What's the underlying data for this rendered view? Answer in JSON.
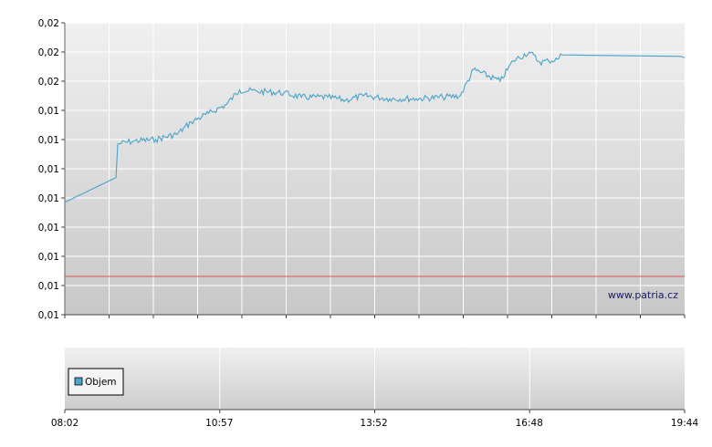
{
  "chart_data": {
    "type": "line",
    "title": "",
    "xlabel": "",
    "ylabel": "",
    "y_tick_labels": [
      "0,02",
      "0,02",
      "0,02",
      "0,01",
      "0,01",
      "0,01",
      "0,01",
      "0,01",
      "0,01",
      "0,01",
      "0,01"
    ],
    "x_tick_labels": [
      "08:02",
      "10:57",
      "13:52",
      "16:48",
      "19:44"
    ],
    "x_range": [
      "08:02",
      "19:44"
    ],
    "grid": true,
    "watermark": "www.patria.cz",
    "reference_line": {
      "color": "#d9534f"
    },
    "series": [
      {
        "color": "#4ba3c8",
        "x": [
          "08:02",
          "09:00",
          "09:02",
          "09:20",
          "09:45",
          "10:10",
          "10:25",
          "10:45",
          "11:05",
          "11:20",
          "11:40",
          "12:10",
          "12:30",
          "13:00",
          "13:20",
          "13:40",
          "14:10",
          "14:40",
          "15:10",
          "15:30",
          "15:45",
          "16:15",
          "16:30",
          "16:48",
          "17:00",
          "17:10",
          "17:20",
          "17:25",
          "19:40",
          "19:44"
        ],
        "y_frac": [
          0.385,
          0.47,
          0.585,
          0.595,
          0.6,
          0.62,
          0.66,
          0.69,
          0.72,
          0.77,
          0.765,
          0.76,
          0.745,
          0.745,
          0.735,
          0.75,
          0.74,
          0.74,
          0.745,
          0.75,
          0.84,
          0.8,
          0.87,
          0.9,
          0.865,
          0.87,
          0.875,
          0.89,
          0.885,
          0.88
        ]
      }
    ],
    "volume_panel": {
      "legend": "Objem"
    }
  }
}
